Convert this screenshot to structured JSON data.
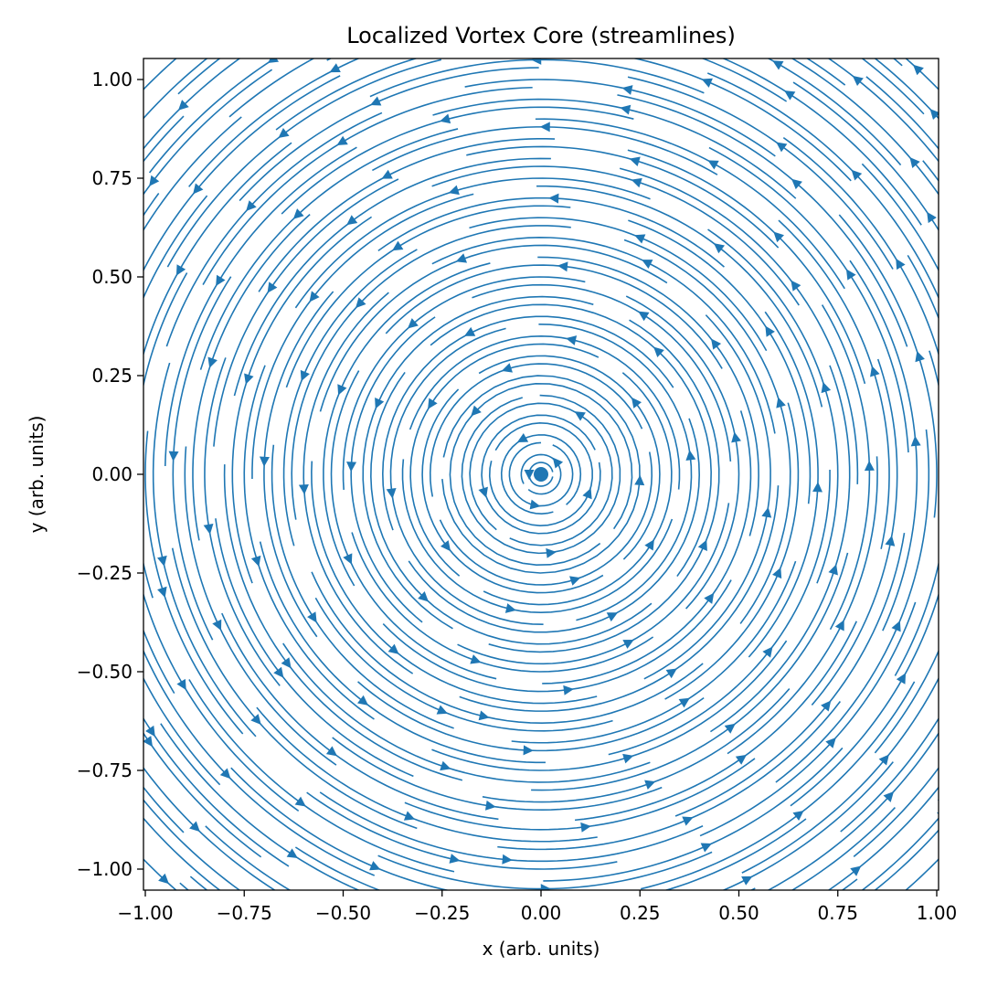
{
  "chart_data": {
    "type": "streamline",
    "title": "Localized Vortex Core (streamlines)",
    "xlabel": "x (arb. units)",
    "ylabel": "y (arb. units)",
    "xlim": [
      -1.0,
      1.0
    ],
    "ylim": [
      -1.0,
      1.0
    ],
    "xticks": [
      -1.0,
      -0.75,
      -0.5,
      -0.25,
      0.0,
      0.25,
      0.5,
      0.75,
      1.0
    ],
    "yticks": [
      -1.0,
      -0.75,
      -0.5,
      -0.25,
      0.0,
      0.25,
      0.5,
      0.75,
      1.0
    ],
    "tick_labels_x": [
      "−1.00",
      "−0.75",
      "−0.50",
      "−0.25",
      "0.00",
      "0.25",
      "0.50",
      "0.75",
      "1.00"
    ],
    "tick_labels_y": [
      "−1.00",
      "−0.75",
      "−0.50",
      "−0.25",
      "0.00",
      "0.25",
      "0.50",
      "0.75",
      "1.00"
    ],
    "rotation": "counter-clockwise",
    "vortex_center": {
      "x": 0.0,
      "y": 0.0
    },
    "streamline_radii": [
      0.03,
      0.05,
      0.08,
      0.1,
      0.13,
      0.15,
      0.18,
      0.2,
      0.23,
      0.25,
      0.28,
      0.3,
      0.33,
      0.35,
      0.38,
      0.4,
      0.43,
      0.45,
      0.48,
      0.5,
      0.53,
      0.55,
      0.58,
      0.6,
      0.63,
      0.65,
      0.68,
      0.7,
      0.73,
      0.75,
      0.78,
      0.8,
      0.83,
      0.85,
      0.88,
      0.9,
      0.93,
      0.95,
      0.98,
      1.0,
      1.03,
      1.05,
      1.08,
      1.1,
      1.13,
      1.15,
      1.18,
      1.2,
      1.23,
      1.25,
      1.28,
      1.3,
      1.33,
      1.35,
      1.38,
      1.4
    ],
    "grid": false,
    "legend": "none",
    "colors": {
      "stream": "#1f77b4",
      "axes": "#000000"
    }
  }
}
